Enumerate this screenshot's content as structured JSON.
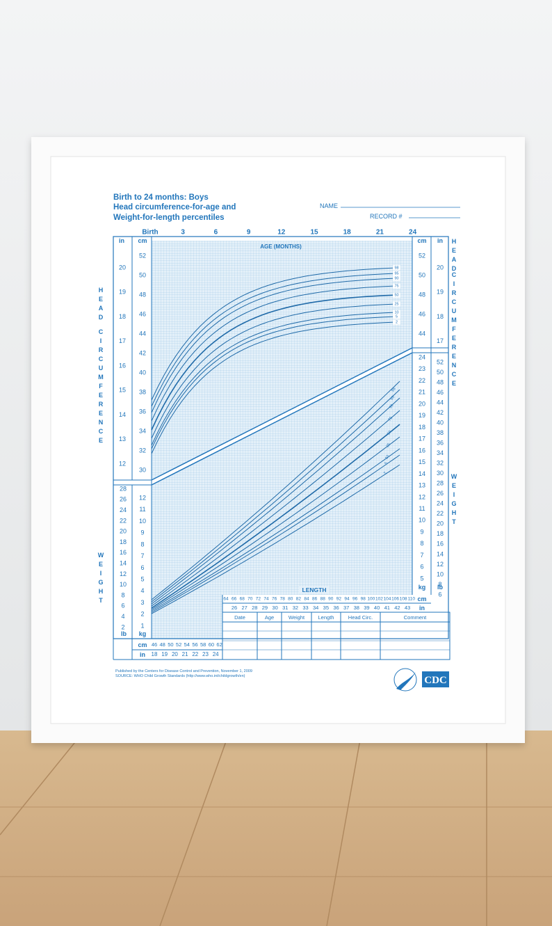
{
  "header": {
    "title_lines": [
      "Birth to 24 months: Boys",
      "Head circumference-for-age and",
      "Weight-for-length percentiles"
    ],
    "name_label": "NAME",
    "record_label": "RECORD #"
  },
  "age_axis": {
    "labels": [
      "Birth",
      "3",
      "6",
      "9",
      "12",
      "15",
      "18",
      "21",
      "24"
    ],
    "title": "AGE (MONTHS)"
  },
  "head_axis": {
    "unit_cm": "cm",
    "unit_in": "in",
    "cm_left": [
      52,
      50,
      48,
      46,
      44,
      42,
      40,
      38,
      36,
      34,
      32,
      30
    ],
    "in_left": [
      20,
      19,
      18,
      17,
      16,
      15,
      14,
      13,
      12
    ],
    "cm_right": [
      52,
      50,
      48,
      46,
      44
    ],
    "in_right": [
      20,
      19,
      18,
      17
    ],
    "side_title": [
      "HEAD",
      "CIRCUMFERENCE"
    ]
  },
  "head_percentiles": [
    98,
    95,
    90,
    75,
    50,
    25,
    10,
    5,
    2
  ],
  "weight_axis": {
    "unit_kg": "kg",
    "unit_lb": "lb",
    "kg_left": [
      12,
      11,
      10,
      9,
      8,
      7,
      6,
      5,
      4,
      3,
      2,
      1
    ],
    "lb_left": [
      28,
      26,
      24,
      22,
      20,
      18,
      16,
      14,
      12,
      10,
      8,
      6,
      4,
      2
    ],
    "kg_right": [
      24,
      23,
      22,
      21,
      20,
      19,
      18,
      17,
      16,
      15,
      14,
      13,
      12,
      11,
      10,
      9,
      8,
      7,
      6,
      5
    ],
    "lb_right": [
      52,
      50,
      48,
      46,
      44,
      42,
      40,
      38,
      36,
      34,
      32,
      30,
      28,
      26,
      24,
      22,
      20,
      18,
      16,
      14,
      12,
      10,
      8,
      6
    ],
    "side_title": "WEIGHT"
  },
  "weight_percentiles": [
    98,
    95,
    90,
    75,
    50,
    25,
    10,
    5,
    2
  ],
  "length_axis": {
    "title": "LENGTH",
    "unit_cm": "cm",
    "unit_in": "in",
    "cm_left": [
      46,
      48,
      50,
      52,
      54,
      56,
      58,
      60,
      62
    ],
    "in_left": [
      18,
      19,
      20,
      21,
      22,
      23,
      24
    ],
    "cm": [
      64,
      66,
      68,
      70,
      72,
      74,
      76,
      78,
      80,
      82,
      84,
      86,
      88,
      90,
      92,
      94,
      96,
      98,
      100,
      102,
      104,
      106,
      108,
      110
    ],
    "in": [
      26,
      27,
      28,
      29,
      30,
      31,
      32,
      33,
      34,
      35,
      36,
      37,
      38,
      39,
      40,
      41,
      42,
      43
    ]
  },
  "record_table": {
    "headers": [
      "Date",
      "Age",
      "Weight",
      "Length",
      "Head Circ.",
      "Comment"
    ]
  },
  "footer": {
    "published": "Published by the Centers for Disease Control and Prevention, November 1, 2009",
    "source": "SOURCE:  WHO Child Growth Standards (http://www.who.int/childgrowth/en)",
    "logo": "CDC"
  }
}
